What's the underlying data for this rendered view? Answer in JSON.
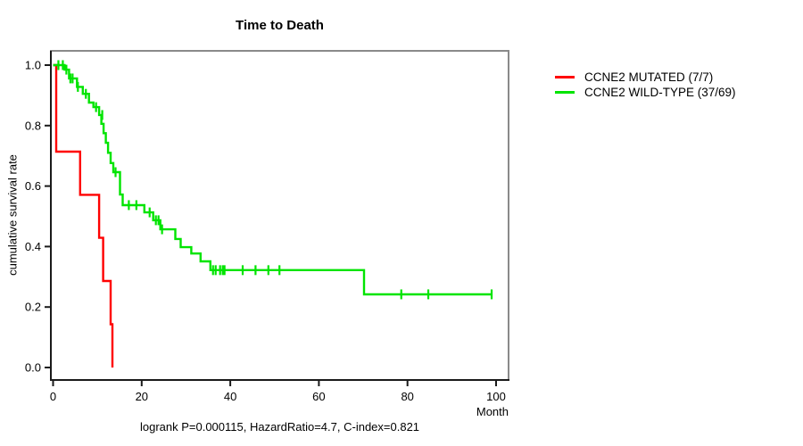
{
  "chart_data": {
    "type": "line",
    "subtype": "kaplan-meier-step",
    "title": "Time to Death",
    "xlabel": "Month",
    "ylabel": "cumulative survival rate",
    "annotation": "logrank P=0.000115, HazardRatio=4.7, C-index=0.821",
    "grid": false,
    "legend_position": "right-outside-top",
    "x_axis": {
      "min": 0,
      "max": 100,
      "tick_values": [
        0,
        20,
        40,
        60,
        80,
        100
      ],
      "tick_labels": [
        "0",
        "20",
        "40",
        "60",
        "80",
        "100"
      ]
    },
    "y_axis": {
      "min": 0.0,
      "max": 1.0,
      "tick_values": [
        0.0,
        0.2,
        0.4,
        0.6,
        0.8,
        1.0
      ],
      "tick_labels": [
        "0.0",
        "0.2",
        "0.4",
        "0.6",
        "0.8",
        "1.0"
      ]
    },
    "series": [
      {
        "name": "CCNE2 MUTATED (7/7)",
        "color": "#ff0000",
        "end_month": 13.4,
        "steps": [
          [
            0,
            1.0
          ],
          [
            0.7,
            0.714
          ],
          [
            6.1,
            0.571
          ],
          [
            10.4,
            0.429
          ],
          [
            11.3,
            0.286
          ],
          [
            13.0,
            0.143
          ],
          [
            13.4,
            0.0
          ]
        ],
        "censors": []
      },
      {
        "name": "CCNE2 WILD-TYPE (37/69)",
        "color": "#00e400",
        "end_month": 99.0,
        "steps": [
          [
            0,
            1.0
          ],
          [
            2.6,
            0.985
          ],
          [
            3.6,
            0.956
          ],
          [
            5.4,
            0.928
          ],
          [
            6.7,
            0.905
          ],
          [
            8.1,
            0.876
          ],
          [
            9.1,
            0.861
          ],
          [
            10.4,
            0.835
          ],
          [
            10.9,
            0.806
          ],
          [
            11.4,
            0.775
          ],
          [
            11.9,
            0.743
          ],
          [
            12.4,
            0.71
          ],
          [
            13.0,
            0.676
          ],
          [
            13.6,
            0.646
          ],
          [
            15.1,
            0.572
          ],
          [
            15.7,
            0.537
          ],
          [
            20.6,
            0.513
          ],
          [
            22.6,
            0.487
          ],
          [
            24.2,
            0.457
          ],
          [
            27.6,
            0.425
          ],
          [
            28.8,
            0.398
          ],
          [
            31.2,
            0.377
          ],
          [
            33.3,
            0.351
          ],
          [
            35.5,
            0.322
          ],
          [
            70.2,
            0.242
          ]
        ],
        "censors": [
          [
            1.2,
            1.0
          ],
          [
            2.2,
            1.0
          ],
          [
            3.0,
            0.985
          ],
          [
            3.9,
            0.956
          ],
          [
            4.4,
            0.956
          ],
          [
            5.6,
            0.928
          ],
          [
            7.4,
            0.905
          ],
          [
            9.7,
            0.861
          ],
          [
            11.1,
            0.835
          ],
          [
            14.1,
            0.646
          ],
          [
            17.1,
            0.537
          ],
          [
            18.8,
            0.537
          ],
          [
            21.8,
            0.513
          ],
          [
            23.2,
            0.487
          ],
          [
            23.8,
            0.487
          ],
          [
            24.6,
            0.457
          ],
          [
            36.1,
            0.322
          ],
          [
            36.7,
            0.322
          ],
          [
            37.7,
            0.322
          ],
          [
            38.3,
            0.322
          ],
          [
            38.7,
            0.322
          ],
          [
            42.8,
            0.322
          ],
          [
            45.7,
            0.322
          ],
          [
            48.6,
            0.322
          ],
          [
            51.1,
            0.322
          ],
          [
            78.6,
            0.242
          ],
          [
            84.7,
            0.242
          ],
          [
            99.0,
            0.242
          ]
        ]
      }
    ]
  }
}
